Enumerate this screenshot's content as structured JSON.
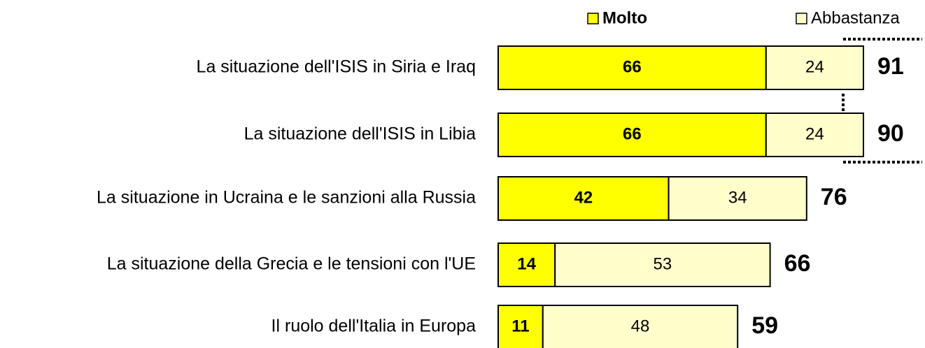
{
  "chart_data": {
    "type": "stacked_bar_horizontal",
    "categories": [
      "La situazione dell'ISIS in Siria e Iraq",
      "La situazione dell'ISIS in Libia",
      "La situazione in Ucraina e le sanzioni alla Russia",
      "La situazione della Grecia e le tensioni con l'UE",
      "Il ruolo dell'Italia in Europa"
    ],
    "series": [
      {
        "name": "Molto",
        "color": "#ffff00",
        "values": [
          66,
          66,
          42,
          14,
          11
        ]
      },
      {
        "name": "Abbastanza",
        "color": "#ffffcc",
        "values": [
          24,
          24,
          34,
          53,
          48
        ]
      }
    ],
    "totals": [
      91,
      90,
      76,
      66,
      59
    ]
  }
}
